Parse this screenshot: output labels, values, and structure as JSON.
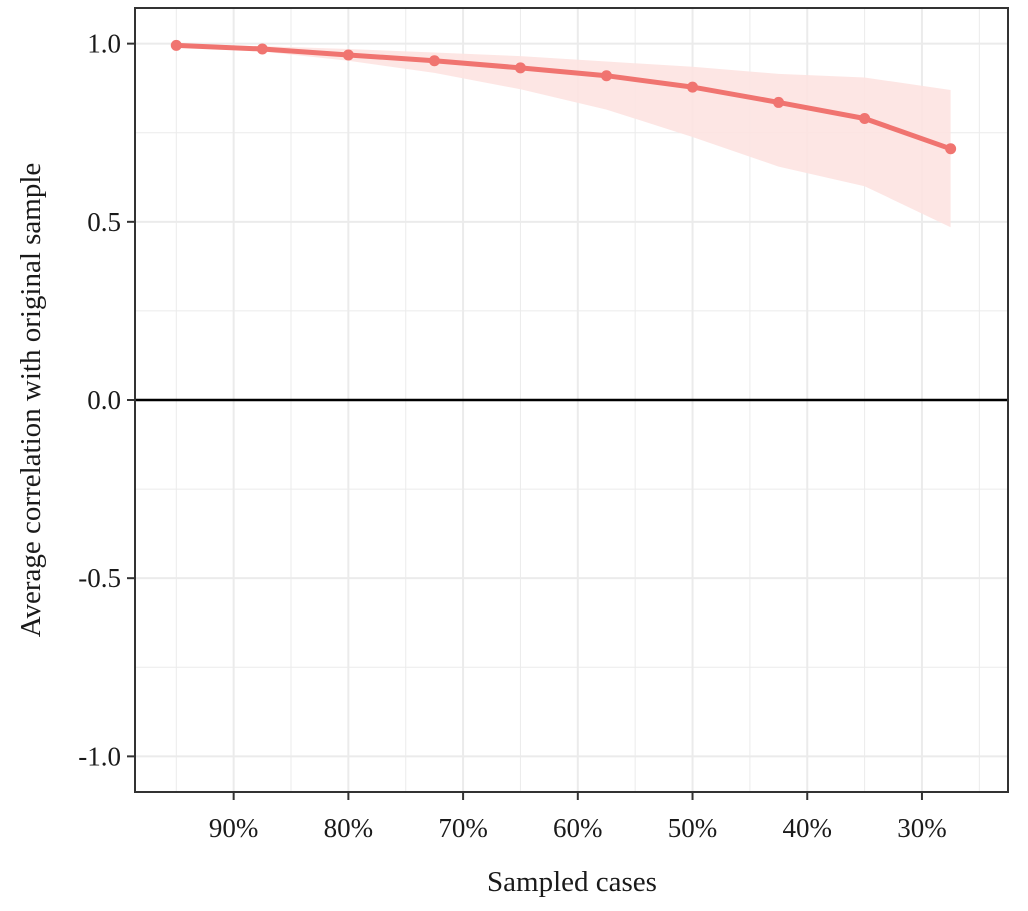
{
  "chart_data": {
    "type": "line",
    "xlabel": "Sampled cases",
    "ylabel": "Average correlation with original sample",
    "x_reversed": true,
    "xlim": [
      22.5,
      98.6
    ],
    "ylim": [
      -1.1,
      1.1
    ],
    "x_ticks": [
      90,
      80,
      70,
      60,
      50,
      40,
      30
    ],
    "x_tick_labels": [
      "90%",
      "80%",
      "70%",
      "60%",
      "50%",
      "40%",
      "30%"
    ],
    "y_ticks": [
      -1.0,
      -0.5,
      0.0,
      0.5,
      1.0
    ],
    "y_tick_labels": [
      "-1.0",
      "-0.5",
      "0.0",
      "0.5",
      "1.0"
    ],
    "grid": true,
    "reference_line_y": 0.0,
    "colors": {
      "line": "#f07470",
      "band": "#fde3e1",
      "refline": "#000000",
      "grid": "#ebebeb",
      "frame": "#333333"
    },
    "series": [
      {
        "x": [
          95.0,
          87.5,
          80.0,
          72.5,
          65.0,
          57.5,
          50.0,
          42.5,
          35.0,
          27.5
        ],
        "y": [
          0.995,
          0.985,
          0.968,
          0.952,
          0.932,
          0.91,
          0.878,
          0.835,
          0.79,
          0.705
        ],
        "lower": [
          0.993,
          0.978,
          0.952,
          0.918,
          0.872,
          0.815,
          0.738,
          0.655,
          0.6,
          0.485
        ],
        "upper": [
          0.998,
          0.993,
          0.985,
          0.975,
          0.965,
          0.95,
          0.935,
          0.915,
          0.905,
          0.87
        ]
      }
    ]
  }
}
